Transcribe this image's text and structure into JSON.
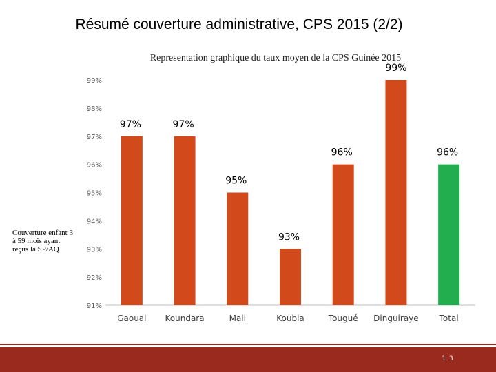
{
  "slide": {
    "title": "Résumé couverture administrative, CPS 2015 (2/2)",
    "page_number": "1 3"
  },
  "colors": {
    "bar_default": "#d24a1c",
    "bar_total": "#22ad4e",
    "footer": "#9a2a1d"
  },
  "chart_data": {
    "type": "bar",
    "title": "Representation graphique du taux moyen de la CPS Guinée 2015",
    "xlabel": "",
    "ylabel": "",
    "legend": "Couverture enfant 3 à 59 mois ayant reçus la SP/AQ",
    "categories": [
      "Gaoual",
      "Koundara",
      "Mali",
      "Koubia",
      "Tougué",
      "Dinguiraye",
      "Total"
    ],
    "values": [
      97,
      97,
      95,
      93,
      96,
      99,
      96
    ],
    "data_labels": [
      "97%",
      "97%",
      "95%",
      "93%",
      "96%",
      "99%",
      "96%"
    ],
    "ylim": [
      91,
      99
    ],
    "yticks": [
      "91%",
      "92%",
      "93%",
      "94%",
      "95%",
      "96%",
      "97%",
      "98%",
      "99%"
    ],
    "grid": false
  }
}
